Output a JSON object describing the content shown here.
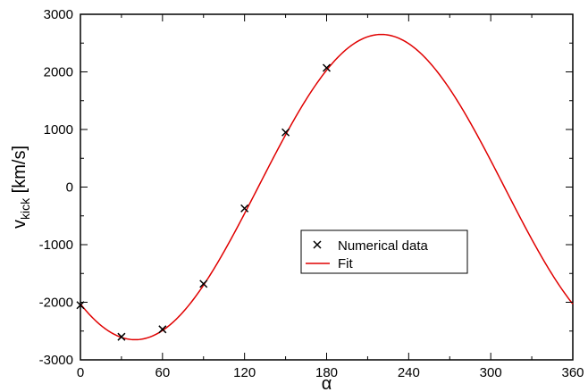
{
  "chart_data": {
    "type": "scatter",
    "title": "",
    "xlabel": "α",
    "ylabel": {
      "main": "v",
      "subscript": "kick",
      "unit": " [km/s]"
    },
    "xlim": [
      0,
      360
    ],
    "ylim": [
      -3000,
      3000
    ],
    "x_ticks": [
      0,
      60,
      120,
      180,
      240,
      300,
      360
    ],
    "x_tick_labels": [
      "0",
      "60",
      "120",
      "180",
      "240",
      "300",
      "360"
    ],
    "y_ticks": [
      -3000,
      -2000,
      -1000,
      0,
      1000,
      2000,
      3000
    ],
    "y_tick_labels": [
      "-3000",
      "-2000",
      "-1000",
      "0",
      "1000",
      "2000",
      "3000"
    ],
    "grid": false,
    "legend_position": "center-right",
    "series": [
      {
        "name": "Numerical data",
        "kind": "scatter",
        "marker": "x",
        "color": "#000000",
        "x": [
          0,
          30,
          60,
          90,
          120,
          150,
          180
        ],
        "y": [
          -2050,
          -2600,
          -2470,
          -1680,
          -370,
          950,
          2070
        ]
      },
      {
        "name": "Fit",
        "kind": "line",
        "color": "#e00000",
        "model": "A*sin(alpha - phi)",
        "amplitude": 2650,
        "phase_deg": 130
      }
    ]
  }
}
